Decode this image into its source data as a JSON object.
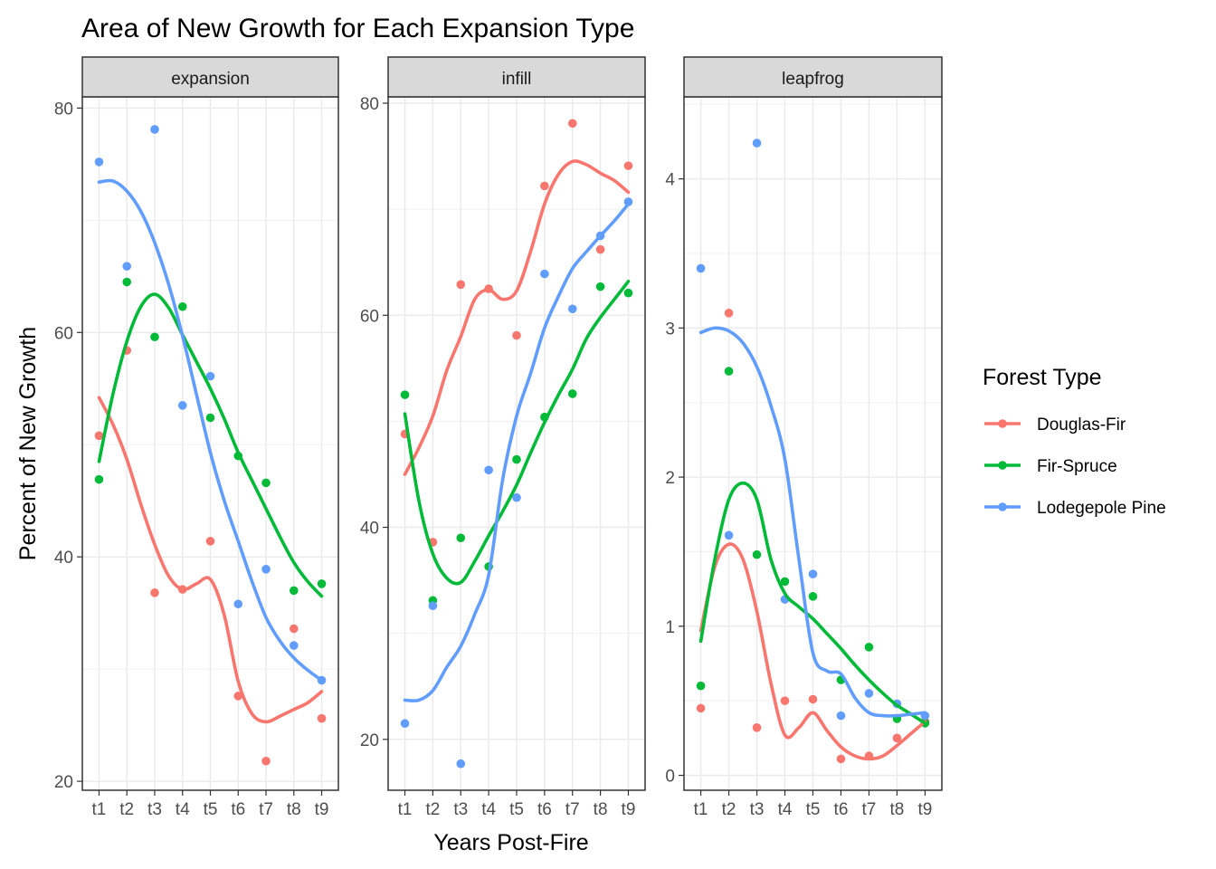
{
  "chart_data": {
    "type": "scatter",
    "title": "Area of New Growth for Each Expansion Type",
    "xlabel": "Years Post-Fire",
    "ylabel": "Percent of New Growth",
    "categories": [
      "t1",
      "t2",
      "t3",
      "t4",
      "t5",
      "t6",
      "t7",
      "t8",
      "t9"
    ],
    "legend": {
      "title": "Forest Type",
      "placement": "right",
      "entries": [
        {
          "name": "Douglas-Fir",
          "color": "#F8766D"
        },
        {
          "name": "Fir-Spruce",
          "color": "#00BA38"
        },
        {
          "name": "Lodegepole Pine",
          "color": "#619CFF"
        }
      ]
    },
    "grid": true,
    "smoothing": "loess",
    "panels": [
      {
        "strip": "expansion",
        "ylim": [
          19.2,
          81.0
        ],
        "yticks": [
          20,
          40,
          60,
          80
        ],
        "series": [
          {
            "name": "Douglas-Fir",
            "points": [
              50.8,
              58.4,
              36.8,
              37.1,
              41.4,
              27.6,
              21.8,
              33.6,
              25.6
            ],
            "smooth": [
              [
                1,
                54.2
              ],
              [
                1.5,
                51.8
              ],
              [
                2,
                48.7
              ],
              [
                2.5,
                44.7
              ],
              [
                3,
                41.1
              ],
              [
                3.5,
                38.3
              ],
              [
                4,
                37.1
              ],
              [
                4.5,
                37.6
              ],
              [
                5,
                38.0
              ],
              [
                5.5,
                34.8
              ],
              [
                6,
                28.9
              ],
              [
                6.5,
                26.0
              ],
              [
                7,
                25.3
              ],
              [
                7.5,
                25.8
              ],
              [
                8,
                26.4
              ],
              [
                8.5,
                27.0
              ],
              [
                9,
                28.0
              ]
            ]
          },
          {
            "name": "Fir-Spruce",
            "points": [
              46.9,
              64.5,
              59.6,
              62.3,
              52.4,
              49.0,
              46.6,
              37.0,
              37.6
            ],
            "smooth": [
              [
                1,
                48.5
              ],
              [
                1.5,
                54.5
              ],
              [
                2,
                59.2
              ],
              [
                2.5,
                62.3
              ],
              [
                3,
                63.4
              ],
              [
                3.5,
                62.2
              ],
              [
                4,
                59.8
              ],
              [
                4.5,
                57.4
              ],
              [
                5,
                55.0
              ],
              [
                5.5,
                52.3
              ],
              [
                6,
                49.3
              ],
              [
                6.5,
                46.8
              ],
              [
                7,
                44.3
              ],
              [
                7.5,
                41.8
              ],
              [
                8,
                39.5
              ],
              [
                8.5,
                37.8
              ],
              [
                9,
                36.5
              ]
            ]
          },
          {
            "name": "Lodegepole Pine",
            "points": [
              75.2,
              65.9,
              78.1,
              53.5,
              56.1,
              35.8,
              38.9,
              32.1,
              29.0
            ],
            "smooth": [
              [
                1,
                73.4
              ],
              [
                1.5,
                73.5
              ],
              [
                2,
                72.6
              ],
              [
                2.5,
                70.8
              ],
              [
                3,
                68.0
              ],
              [
                3.5,
                64.3
              ],
              [
                4,
                59.7
              ],
              [
                4.5,
                54.5
              ],
              [
                5,
                49.3
              ],
              [
                5.5,
                45.0
              ],
              [
                6,
                41.4
              ],
              [
                6.5,
                37.8
              ],
              [
                7,
                34.6
              ],
              [
                7.5,
                32.5
              ],
              [
                8,
                31.0
              ],
              [
                8.5,
                29.9
              ],
              [
                9,
                29.0
              ]
            ]
          }
        ]
      },
      {
        "strip": "infill",
        "ylim": [
          15.2,
          80.6
        ],
        "yticks": [
          20,
          40,
          60,
          80
        ],
        "series": [
          {
            "name": "Douglas-Fir",
            "points": [
              48.8,
              38.6,
              62.9,
              62.5,
              58.1,
              72.2,
              78.1,
              66.2,
              74.1
            ],
            "smooth": [
              [
                1,
                45.0
              ],
              [
                1.5,
                47.5
              ],
              [
                2,
                50.5
              ],
              [
                2.5,
                54.8
              ],
              [
                3,
                58.0
              ],
              [
                3.5,
                61.5
              ],
              [
                4,
                62.4
              ],
              [
                4.5,
                61.5
              ],
              [
                5,
                62.3
              ],
              [
                5.5,
                66.0
              ],
              [
                6,
                70.5
              ],
              [
                6.5,
                73.3
              ],
              [
                7,
                74.5
              ],
              [
                7.5,
                74.2
              ],
              [
                8,
                73.4
              ],
              [
                8.5,
                72.7
              ],
              [
                9,
                71.6
              ]
            ]
          },
          {
            "name": "Fir-Spruce",
            "points": [
              52.5,
              33.1,
              39.0,
              36.3,
              46.4,
              50.4,
              52.6,
              62.7,
              62.1
            ],
            "smooth": [
              [
                1,
                50.7
              ],
              [
                1.5,
                42.5
              ],
              [
                2,
                37.5
              ],
              [
                2.5,
                35.2
              ],
              [
                3,
                34.8
              ],
              [
                3.5,
                36.8
              ],
              [
                4,
                39.2
              ],
              [
                4.5,
                41.5
              ],
              [
                5,
                44.0
              ],
              [
                5.5,
                47.0
              ],
              [
                6,
                49.9
              ],
              [
                6.5,
                52.5
              ],
              [
                7,
                54.9
              ],
              [
                7.5,
                57.8
              ],
              [
                8,
                59.8
              ],
              [
                8.5,
                61.5
              ],
              [
                9,
                63.2
              ]
            ]
          },
          {
            "name": "Lodegepole Pine",
            "points": [
              21.5,
              32.6,
              17.7,
              45.4,
              42.8,
              63.9,
              60.6,
              67.5,
              70.7
            ],
            "smooth": [
              [
                1,
                23.7
              ],
              [
                1.5,
                23.7
              ],
              [
                2,
                24.6
              ],
              [
                2.5,
                26.8
              ],
              [
                3,
                28.8
              ],
              [
                3.5,
                31.8
              ],
              [
                4,
                35.5
              ],
              [
                4.5,
                44.5
              ],
              [
                5,
                50.5
              ],
              [
                5.5,
                54.5
              ],
              [
                6,
                58.8
              ],
              [
                6.5,
                61.8
              ],
              [
                7,
                64.4
              ],
              [
                7.5,
                66.0
              ],
              [
                8,
                67.5
              ],
              [
                8.5,
                68.9
              ],
              [
                9,
                70.5
              ]
            ]
          }
        ]
      },
      {
        "strip": "leapfrog",
        "ylim": [
          -0.1,
          4.55
        ],
        "yticks": [
          0,
          1,
          2,
          3,
          4
        ],
        "series": [
          {
            "name": "Douglas-Fir",
            "points": [
              0.45,
              3.1,
              0.32,
              0.5,
              0.51,
              0.11,
              0.13,
              0.25,
              0.36
            ],
            "smooth": [
              [
                1,
                0.97
              ],
              [
                1.5,
                1.4
              ],
              [
                2,
                1.55
              ],
              [
                2.5,
                1.45
              ],
              [
                3,
                1.1
              ],
              [
                3.5,
                0.62
              ],
              [
                4,
                0.27
              ],
              [
                4.5,
                0.32
              ],
              [
                5,
                0.42
              ],
              [
                5.5,
                0.3
              ],
              [
                6,
                0.19
              ],
              [
                6.5,
                0.13
              ],
              [
                7,
                0.11
              ],
              [
                7.5,
                0.13
              ],
              [
                8,
                0.2
              ],
              [
                8.5,
                0.28
              ],
              [
                9,
                0.36
              ]
            ]
          },
          {
            "name": "Fir-Spruce",
            "points": [
              0.6,
              2.71,
              1.48,
              1.3,
              1.2,
              0.64,
              0.86,
              0.38,
              0.35
            ],
            "smooth": [
              [
                1,
                0.9
              ],
              [
                1.5,
                1.45
              ],
              [
                2,
                1.85
              ],
              [
                2.5,
                1.96
              ],
              [
                3,
                1.85
              ],
              [
                3.5,
                1.45
              ],
              [
                4,
                1.22
              ],
              [
                4.5,
                1.13
              ],
              [
                5,
                1.05
              ],
              [
                5.5,
                0.95
              ],
              [
                6,
                0.85
              ],
              [
                6.5,
                0.74
              ],
              [
                7,
                0.64
              ],
              [
                7.5,
                0.55
              ],
              [
                8,
                0.47
              ],
              [
                8.5,
                0.41
              ],
              [
                9,
                0.35
              ]
            ]
          },
          {
            "name": "Lodegepole Pine",
            "points": [
              3.4,
              1.61,
              4.24,
              1.18,
              1.35,
              0.4,
              0.55,
              0.48,
              0.4
            ],
            "smooth": [
              [
                1,
                2.97
              ],
              [
                1.5,
                3.0
              ],
              [
                2,
                2.98
              ],
              [
                2.5,
                2.9
              ],
              [
                3,
                2.74
              ],
              [
                3.5,
                2.48
              ],
              [
                4,
                2.12
              ],
              [
                4.5,
                1.45
              ],
              [
                5,
                0.82
              ],
              [
                5.5,
                0.7
              ],
              [
                6,
                0.68
              ],
              [
                6.5,
                0.52
              ],
              [
                7,
                0.42
              ],
              [
                7.5,
                0.4
              ],
              [
                8,
                0.4
              ],
              [
                8.5,
                0.41
              ],
              [
                9,
                0.42
              ]
            ]
          }
        ]
      }
    ]
  }
}
